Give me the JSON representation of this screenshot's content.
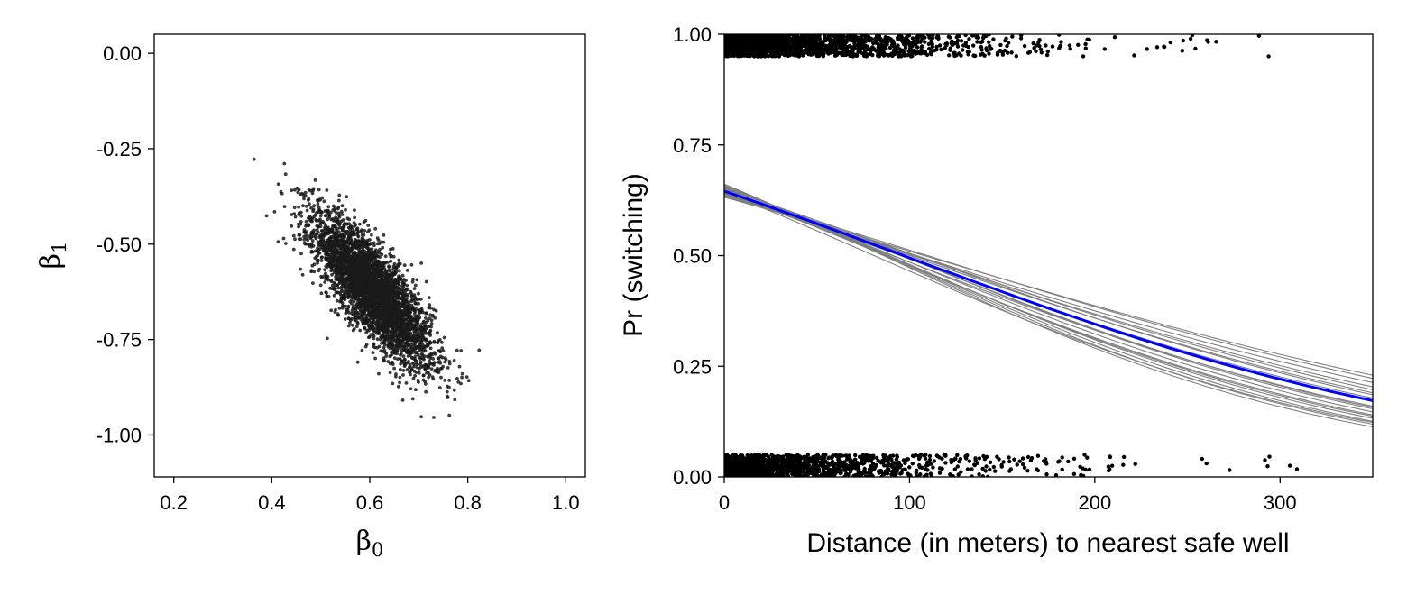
{
  "chart_data": [
    {
      "type": "scatter",
      "title": "",
      "xlabel": "β0",
      "ylabel": "β1",
      "xlabel_symbol": "β",
      "xlabel_subscript": "0",
      "ylabel_symbol": "β",
      "ylabel_subscript": "1",
      "xlim": [
        0.16,
        1.04
      ],
      "ylim": [
        -1.11,
        0.05
      ],
      "x_ticks": [
        0.2,
        0.4,
        0.6,
        0.8,
        1.0
      ],
      "x_tick_labels": [
        "0.2",
        "0.4",
        "0.6",
        "0.8",
        "1.0"
      ],
      "y_ticks": [
        0.0,
        -0.25,
        -0.5,
        -0.75,
        -1.0
      ],
      "y_tick_labels": [
        "0.00",
        "-0.25",
        "-0.50",
        "-0.75",
        "-1.00"
      ],
      "grid": false,
      "point_color": "#1a1a1a",
      "points_summary": {
        "n": 4000,
        "mean": [
          0.606,
          -0.622
        ],
        "sd": [
          0.06,
          0.098
        ],
        "correlation": -0.8
      }
    },
    {
      "type": "line",
      "title": "",
      "xlabel": "Distance (in meters) to nearest safe well",
      "ylabel": "Pr (switching)",
      "xlim": [
        0,
        350
      ],
      "ylim": [
        0,
        1
      ],
      "x_ticks": [
        0,
        100,
        200,
        300
      ],
      "x_tick_labels": [
        "0",
        "100",
        "200",
        "300"
      ],
      "y_ticks": [
        0.0,
        0.25,
        0.5,
        0.75,
        1.0
      ],
      "y_tick_labels": [
        "0.00",
        "0.25",
        "0.50",
        "0.75",
        "1.00"
      ],
      "grid": false,
      "series": [
        {
          "kind": "logistic-fit",
          "color": "#0000ff",
          "intercept": 0.6,
          "slope_per_100m": -0.62
        },
        {
          "kind": "posterior-draws",
          "color": "#7f7f7f",
          "draws": [
            [
              0.62,
              -0.68
            ],
            [
              0.58,
              -0.58
            ],
            [
              0.64,
              -0.72
            ],
            [
              0.55,
              -0.53
            ],
            [
              0.66,
              -0.76
            ],
            [
              0.6,
              -0.62
            ],
            [
              0.57,
              -0.6
            ],
            [
              0.63,
              -0.66
            ],
            [
              0.59,
              -0.57
            ],
            [
              0.65,
              -0.74
            ],
            [
              0.56,
              -0.55
            ],
            [
              0.61,
              -0.7
            ],
            [
              0.54,
              -0.5
            ],
            [
              0.67,
              -0.78
            ],
            [
              0.58,
              -0.64
            ],
            [
              0.62,
              -0.6
            ],
            [
              0.6,
              -0.69
            ],
            [
              0.57,
              -0.52
            ],
            [
              0.64,
              -0.67
            ],
            [
              0.59,
              -0.73
            ]
          ]
        },
        {
          "kind": "jittered-outcomes",
          "color": "#000000",
          "jitter": 0.05,
          "switched_value": 1,
          "not_switched_value": 0,
          "distance_mean": 48,
          "distance_max": 340,
          "n_switched": 1737,
          "n_not_switched": 1283
        }
      ]
    }
  ]
}
